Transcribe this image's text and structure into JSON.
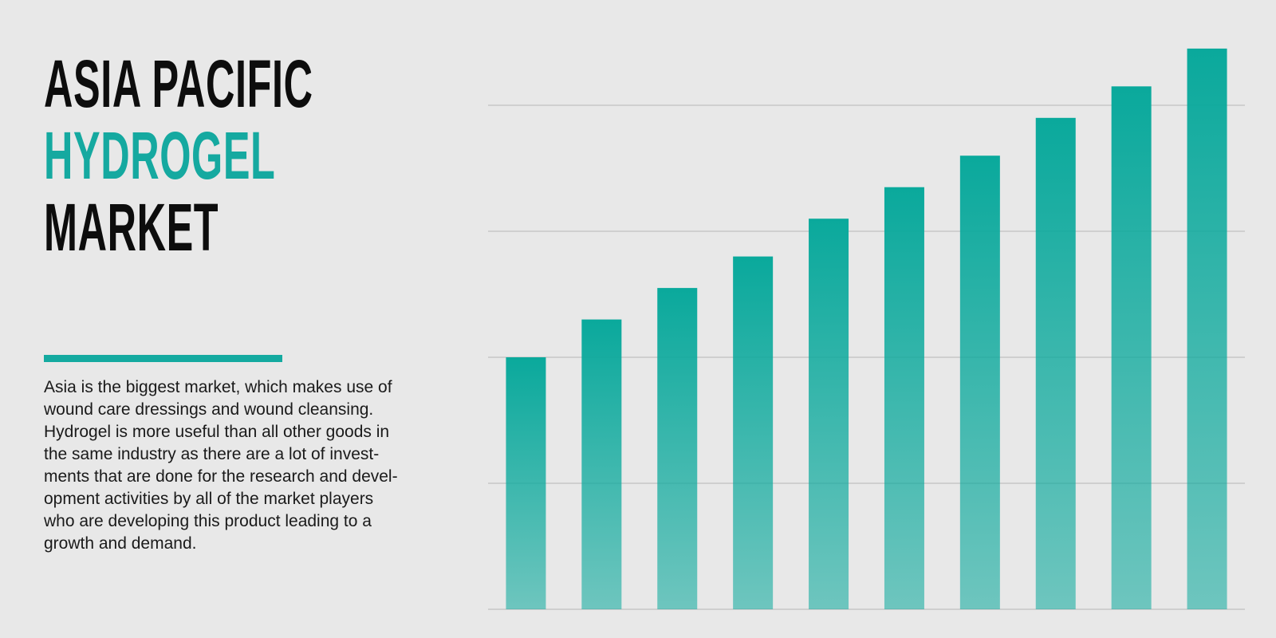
{
  "heading": {
    "lines": [
      "ASIA PACIFIC",
      "HYDROGEL",
      "MARKET"
    ]
  },
  "description": {
    "lines": [
      "Asia is the biggest market, which makes use of",
      "wound care dressings and wound cleansing.",
      "Hydrogel is more useful than all other goods in",
      "the same industry as there are a lot of invest-",
      "ments that are done for the research and devel-",
      "opment activities by all of the market players",
      "who are developing this product leading to a",
      "growth and demand."
    ]
  },
  "chart_data": {
    "type": "bar",
    "categories": [
      null,
      null,
      null,
      null,
      null,
      null,
      null,
      null,
      null,
      null
    ],
    "values": [
      2.0,
      2.3,
      2.55,
      2.8,
      3.1,
      3.35,
      3.6,
      3.9,
      4.15,
      4.45
    ],
    "color": "#0aa99c",
    "ylim": [
      0,
      4.6
    ],
    "yticks": [
      0,
      1,
      2,
      3,
      4
    ],
    "grid": true
  }
}
